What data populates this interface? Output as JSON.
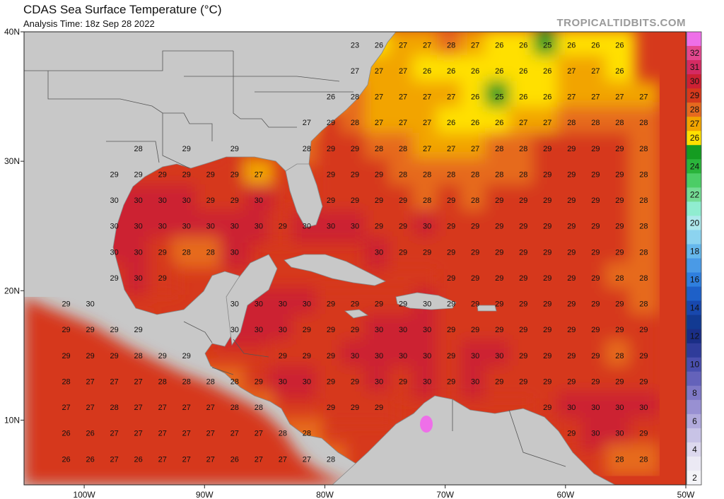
{
  "header": {
    "title": "CDAS Sea Surface Temperature (°C)",
    "analysis_time": "Analysis Time: 18z Sep 28 2022",
    "watermark": "TROPICALTIDBITS.COM"
  },
  "map": {
    "lon_range": [
      -105,
      -50
    ],
    "lat_range": [
      5,
      40
    ],
    "lat_ticks": [
      {
        "lat": 40,
        "label": "40N"
      },
      {
        "lat": 30,
        "label": "30N"
      },
      {
        "lat": 20,
        "label": "20N"
      },
      {
        "lat": 10,
        "label": "10N"
      }
    ],
    "lon_ticks": [
      {
        "lon": -100,
        "label": "100W"
      },
      {
        "lon": -90,
        "label": "90W"
      },
      {
        "lon": -80,
        "label": "80W"
      },
      {
        "lon": -70,
        "label": "70W"
      },
      {
        "lon": -60,
        "label": "60W"
      },
      {
        "lon": -50,
        "label": "50W"
      }
    ],
    "colors": {
      "land": "#c8c8c8",
      "border": "#555555"
    }
  },
  "colorbar": {
    "labels": [
      "32",
      "31",
      "30",
      "29",
      "28",
      "27",
      "26",
      "24",
      "22",
      "20",
      "18",
      "16",
      "14",
      "12",
      "10",
      "8",
      "6",
      "4",
      "2"
    ],
    "bands": [
      {
        "value": 33,
        "color": "#ee6fe8"
      },
      {
        "value": 32,
        "color": "#e4488f"
      },
      {
        "value": 31,
        "color": "#d42b62"
      },
      {
        "value": 30,
        "color": "#cc2033"
      },
      {
        "value": 29,
        "color": "#d6391c"
      },
      {
        "value": 28,
        "color": "#e66a1f"
      },
      {
        "value": 27,
        "color": "#f2a400"
      },
      {
        "value": 26,
        "color": "#ffe000"
      },
      {
        "value": 25,
        "color": "#149c21"
      },
      {
        "value": 24,
        "color": "#2ab43b"
      },
      {
        "value": 23,
        "color": "#4ccd66"
      },
      {
        "value": 22,
        "color": "#75dc95"
      },
      {
        "value": 21,
        "color": "#90edd0"
      },
      {
        "value": 20,
        "color": "#aee9ec"
      },
      {
        "value": 19,
        "color": "#8cd3ef"
      },
      {
        "value": 18,
        "color": "#66b8ec"
      },
      {
        "value": 17,
        "color": "#4a9ae6"
      },
      {
        "value": 16,
        "color": "#2f7fde"
      },
      {
        "value": 15,
        "color": "#1e60c8"
      },
      {
        "value": 14,
        "color": "#1848ad"
      },
      {
        "value": 13,
        "color": "#123a92"
      },
      {
        "value": 12,
        "color": "#1a2e86"
      },
      {
        "value": 11,
        "color": "#2f3c9a"
      },
      {
        "value": 10,
        "color": "#4a4fae"
      },
      {
        "value": 9,
        "color": "#6462ba"
      },
      {
        "value": 8,
        "color": "#7f79c6"
      },
      {
        "value": 7,
        "color": "#9890d2"
      },
      {
        "value": 6,
        "color": "#b1aadc"
      },
      {
        "value": 5,
        "color": "#c8c3e6"
      },
      {
        "value": 4,
        "color": "#dcd8ee"
      },
      {
        "value": 3,
        "color": "#ebe9f4"
      },
      {
        "value": 2,
        "color": "#f4f4f8"
      }
    ]
  },
  "sst_rows": [
    {
      "lat": 39,
      "cells": [
        [
          -77.5,
          23
        ],
        [
          -75.5,
          26
        ],
        [
          -73.5,
          27
        ],
        [
          -71.5,
          27
        ],
        [
          -69.5,
          28
        ],
        [
          -67.5,
          27
        ],
        [
          -65.5,
          26
        ],
        [
          -63.5,
          26
        ],
        [
          -61.5,
          25
        ],
        [
          -59.5,
          26
        ],
        [
          -57.5,
          26
        ],
        [
          -55.5,
          26
        ]
      ]
    },
    {
      "lat": 37,
      "cells": [
        [
          -77.5,
          27
        ],
        [
          -75.5,
          27
        ],
        [
          -73.5,
          27
        ],
        [
          -71.5,
          26
        ],
        [
          -69.5,
          26
        ],
        [
          -67.5,
          26
        ],
        [
          -65.5,
          26
        ],
        [
          -63.5,
          26
        ],
        [
          -61.5,
          26
        ],
        [
          -59.5,
          27
        ],
        [
          -57.5,
          27
        ],
        [
          -55.5,
          26
        ]
      ]
    },
    {
      "lat": 35,
      "cells": [
        [
          -79.5,
          26
        ],
        [
          -77.5,
          28
        ],
        [
          -75.5,
          27
        ],
        [
          -73.5,
          27
        ],
        [
          -71.5,
          27
        ],
        [
          -69.5,
          27
        ],
        [
          -67.5,
          26
        ],
        [
          -65.5,
          25
        ],
        [
          -63.5,
          26
        ],
        [
          -61.5,
          26
        ],
        [
          -59.5,
          27
        ],
        [
          -57.5,
          27
        ],
        [
          -55.5,
          27
        ],
        [
          -53.5,
          27
        ]
      ]
    },
    {
      "lat": 33,
      "cells": [
        [
          -81.5,
          27
        ],
        [
          -79.5,
          29
        ],
        [
          -77.5,
          28
        ],
        [
          -75.5,
          27
        ],
        [
          -73.5,
          27
        ],
        [
          -71.5,
          27
        ],
        [
          -69.5,
          26
        ],
        [
          -67.5,
          26
        ],
        [
          -65.5,
          26
        ],
        [
          -63.5,
          27
        ],
        [
          -61.5,
          27
        ],
        [
          -59.5,
          28
        ],
        [
          -57.5,
          28
        ],
        [
          -55.5,
          28
        ],
        [
          -53.5,
          28
        ]
      ]
    },
    {
      "lat": 31,
      "cells": [
        [
          -95.5,
          28
        ],
        [
          -91.5,
          29
        ],
        [
          -87.5,
          29
        ],
        [
          -81.5,
          28
        ],
        [
          -79.5,
          29
        ],
        [
          -77.5,
          29
        ],
        [
          -75.5,
          28
        ],
        [
          -73.5,
          28
        ],
        [
          -71.5,
          27
        ],
        [
          -69.5,
          27
        ],
        [
          -67.5,
          27
        ],
        [
          -65.5,
          28
        ],
        [
          -63.5,
          28
        ],
        [
          -61.5,
          29
        ],
        [
          -59.5,
          29
        ],
        [
          -57.5,
          29
        ],
        [
          -55.5,
          29
        ],
        [
          -53.5,
          28
        ]
      ]
    },
    {
      "lat": 29,
      "cells": [
        [
          -97.5,
          29
        ],
        [
          -95.5,
          29
        ],
        [
          -93.5,
          29
        ],
        [
          -91.5,
          29
        ],
        [
          -89.5,
          29
        ],
        [
          -87.5,
          29
        ],
        [
          -85.5,
          27
        ],
        [
          -79.5,
          29
        ],
        [
          -77.5,
          29
        ],
        [
          -75.5,
          29
        ],
        [
          -73.5,
          28
        ],
        [
          -71.5,
          28
        ],
        [
          -69.5,
          28
        ],
        [
          -67.5,
          28
        ],
        [
          -65.5,
          28
        ],
        [
          -63.5,
          28
        ],
        [
          -61.5,
          29
        ],
        [
          -59.5,
          29
        ],
        [
          -57.5,
          29
        ],
        [
          -55.5,
          29
        ],
        [
          -53.5,
          28
        ]
      ]
    },
    {
      "lat": 27,
      "cells": [
        [
          -97.5,
          30
        ],
        [
          -95.5,
          30
        ],
        [
          -93.5,
          30
        ],
        [
          -91.5,
          30
        ],
        [
          -89.5,
          29
        ],
        [
          -87.5,
          29
        ],
        [
          -85.5,
          30
        ],
        [
          -79.5,
          29
        ],
        [
          -77.5,
          29
        ],
        [
          -75.5,
          29
        ],
        [
          -73.5,
          29
        ],
        [
          -71.5,
          28
        ],
        [
          -69.5,
          29
        ],
        [
          -67.5,
          28
        ],
        [
          -65.5,
          29
        ],
        [
          -63.5,
          29
        ],
        [
          -61.5,
          29
        ],
        [
          -59.5,
          29
        ],
        [
          -57.5,
          29
        ],
        [
          -55.5,
          29
        ],
        [
          -53.5,
          28
        ]
      ]
    },
    {
      "lat": 25,
      "cells": [
        [
          -97.5,
          30
        ],
        [
          -95.5,
          30
        ],
        [
          -93.5,
          30
        ],
        [
          -91.5,
          30
        ],
        [
          -89.5,
          30
        ],
        [
          -87.5,
          30
        ],
        [
          -85.5,
          30
        ],
        [
          -83.5,
          29
        ],
        [
          -81.5,
          30
        ],
        [
          -79.5,
          30
        ],
        [
          -77.5,
          30
        ],
        [
          -75.5,
          29
        ],
        [
          -73.5,
          29
        ],
        [
          -71.5,
          30
        ],
        [
          -69.5,
          29
        ],
        [
          -67.5,
          29
        ],
        [
          -65.5,
          29
        ],
        [
          -63.5,
          29
        ],
        [
          -61.5,
          29
        ],
        [
          -59.5,
          29
        ],
        [
          -57.5,
          29
        ],
        [
          -55.5,
          29
        ],
        [
          -53.5,
          28
        ]
      ]
    },
    {
      "lat": 23,
      "cells": [
        [
          -97.5,
          30
        ],
        [
          -95.5,
          30
        ],
        [
          -93.5,
          29
        ],
        [
          -91.5,
          28
        ],
        [
          -89.5,
          28
        ],
        [
          -87.5,
          30
        ],
        [
          -75.5,
          30
        ],
        [
          -73.5,
          29
        ],
        [
          -71.5,
          29
        ],
        [
          -69.5,
          29
        ],
        [
          -67.5,
          29
        ],
        [
          -65.5,
          29
        ],
        [
          -63.5,
          29
        ],
        [
          -61.5,
          29
        ],
        [
          -59.5,
          29
        ],
        [
          -57.5,
          29
        ],
        [
          -55.5,
          29
        ],
        [
          -53.5,
          28
        ]
      ]
    },
    {
      "lat": 21,
      "cells": [
        [
          -97.5,
          29
        ],
        [
          -95.5,
          30
        ],
        [
          -93.5,
          29
        ],
        [
          -69.5,
          29
        ],
        [
          -67.5,
          29
        ],
        [
          -65.5,
          29
        ],
        [
          -63.5,
          29
        ],
        [
          -61.5,
          29
        ],
        [
          -59.5,
          29
        ],
        [
          -57.5,
          29
        ],
        [
          -55.5,
          28
        ],
        [
          -53.5,
          28
        ]
      ]
    },
    {
      "lat": 19,
      "cells": [
        [
          -101.5,
          29
        ],
        [
          -99.5,
          30
        ],
        [
          -87.5,
          30
        ],
        [
          -85.5,
          30
        ],
        [
          -83.5,
          30
        ],
        [
          -81.5,
          30
        ],
        [
          -79.5,
          29
        ],
        [
          -77.5,
          29
        ],
        [
          -75.5,
          29
        ],
        [
          -73.5,
          29
        ],
        [
          -71.5,
          30
        ],
        [
          -69.5,
          29
        ],
        [
          -67.5,
          29
        ],
        [
          -65.5,
          29
        ],
        [
          -63.5,
          29
        ],
        [
          -61.5,
          29
        ],
        [
          -59.5,
          29
        ],
        [
          -57.5,
          29
        ],
        [
          -55.5,
          29
        ],
        [
          -53.5,
          28
        ]
      ]
    },
    {
      "lat": 17,
      "cells": [
        [
          -101.5,
          29
        ],
        [
          -99.5,
          29
        ],
        [
          -97.5,
          29
        ],
        [
          -95.5,
          29
        ],
        [
          -87.5,
          30
        ],
        [
          -85.5,
          30
        ],
        [
          -83.5,
          30
        ],
        [
          -81.5,
          29
        ],
        [
          -79.5,
          29
        ],
        [
          -77.5,
          29
        ],
        [
          -75.5,
          30
        ],
        [
          -73.5,
          30
        ],
        [
          -71.5,
          30
        ],
        [
          -69.5,
          29
        ],
        [
          -67.5,
          29
        ],
        [
          -65.5,
          29
        ],
        [
          -63.5,
          29
        ],
        [
          -61.5,
          29
        ],
        [
          -59.5,
          29
        ],
        [
          -57.5,
          29
        ],
        [
          -55.5,
          29
        ],
        [
          -53.5,
          29
        ]
      ]
    },
    {
      "lat": 15,
      "cells": [
        [
          -101.5,
          29
        ],
        [
          -99.5,
          29
        ],
        [
          -97.5,
          29
        ],
        [
          -95.5,
          28
        ],
        [
          -93.5,
          29
        ],
        [
          -91.5,
          29
        ],
        [
          -83.5,
          29
        ],
        [
          -81.5,
          29
        ],
        [
          -79.5,
          29
        ],
        [
          -77.5,
          30
        ],
        [
          -75.5,
          30
        ],
        [
          -73.5,
          30
        ],
        [
          -71.5,
          30
        ],
        [
          -69.5,
          29
        ],
        [
          -67.5,
          30
        ],
        [
          -65.5,
          30
        ],
        [
          -63.5,
          29
        ],
        [
          -61.5,
          29
        ],
        [
          -59.5,
          29
        ],
        [
          -57.5,
          29
        ],
        [
          -55.5,
          28
        ],
        [
          -53.5,
          29
        ]
      ]
    },
    {
      "lat": 13,
      "cells": [
        [
          -101.5,
          28
        ],
        [
          -99.5,
          27
        ],
        [
          -97.5,
          27
        ],
        [
          -95.5,
          27
        ],
        [
          -93.5,
          28
        ],
        [
          -91.5,
          28
        ],
        [
          -89.5,
          28
        ],
        [
          -87.5,
          28
        ],
        [
          -85.5,
          29
        ],
        [
          -83.5,
          30
        ],
        [
          -81.5,
          30
        ],
        [
          -79.5,
          29
        ],
        [
          -77.5,
          29
        ],
        [
          -75.5,
          30
        ],
        [
          -73.5,
          29
        ],
        [
          -71.5,
          30
        ],
        [
          -69.5,
          29
        ],
        [
          -67.5,
          30
        ],
        [
          -65.5,
          29
        ],
        [
          -63.5,
          29
        ],
        [
          -61.5,
          29
        ],
        [
          -59.5,
          29
        ],
        [
          -57.5,
          29
        ],
        [
          -55.5,
          29
        ],
        [
          -53.5,
          29
        ]
      ]
    },
    {
      "lat": 11,
      "cells": [
        [
          -101.5,
          27
        ],
        [
          -99.5,
          27
        ],
        [
          -97.5,
          28
        ],
        [
          -95.5,
          27
        ],
        [
          -93.5,
          27
        ],
        [
          -91.5,
          27
        ],
        [
          -89.5,
          27
        ],
        [
          -87.5,
          28
        ],
        [
          -85.5,
          28
        ],
        [
          -79.5,
          29
        ],
        [
          -77.5,
          29
        ],
        [
          -75.5,
          29
        ],
        [
          -61.5,
          29
        ],
        [
          -59.5,
          30
        ],
        [
          -57.5,
          30
        ],
        [
          -55.5,
          30
        ],
        [
          -53.5,
          30
        ]
      ]
    },
    {
      "lat": 9,
      "cells": [
        [
          -101.5,
          26
        ],
        [
          -99.5,
          26
        ],
        [
          -97.5,
          27
        ],
        [
          -95.5,
          27
        ],
        [
          -93.5,
          27
        ],
        [
          -91.5,
          27
        ],
        [
          -89.5,
          27
        ],
        [
          -87.5,
          27
        ],
        [
          -85.5,
          27
        ],
        [
          -83.5,
          28
        ],
        [
          -81.5,
          28
        ],
        [
          -59.5,
          29
        ],
        [
          -57.5,
          30
        ],
        [
          -55.5,
          30
        ],
        [
          -53.5,
          29
        ]
      ]
    },
    {
      "lat": 7,
      "cells": [
        [
          -101.5,
          26
        ],
        [
          -99.5,
          26
        ],
        [
          -97.5,
          27
        ],
        [
          -95.5,
          26
        ],
        [
          -93.5,
          27
        ],
        [
          -91.5,
          27
        ],
        [
          -89.5,
          27
        ],
        [
          -87.5,
          26
        ],
        [
          -85.5,
          27
        ],
        [
          -83.5,
          27
        ],
        [
          -81.5,
          27
        ],
        [
          -79.5,
          28
        ],
        [
          -55.5,
          28
        ],
        [
          -53.5,
          28
        ]
      ]
    }
  ]
}
